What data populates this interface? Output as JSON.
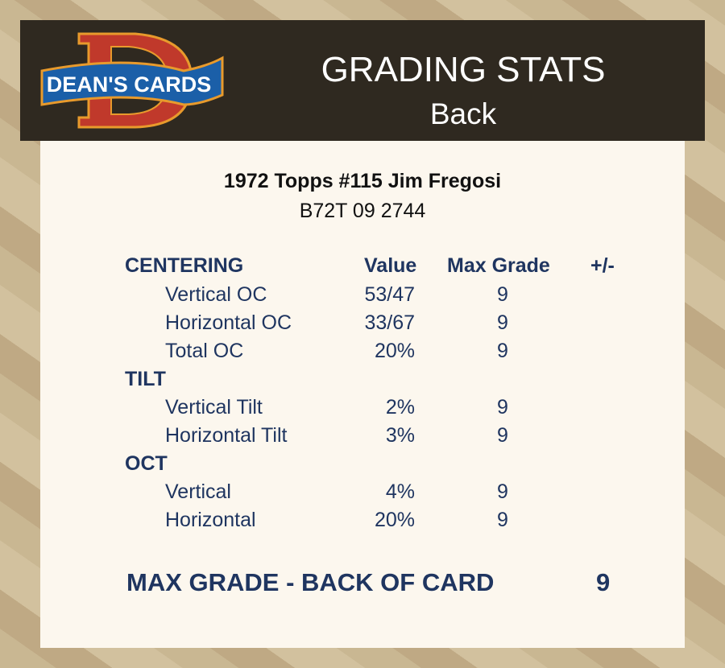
{
  "header": {
    "logo_text": "DEAN'S CARDS",
    "title": "GRADING STATS",
    "subtitle": "Back"
  },
  "card": {
    "name": "1972 Topps #115 Jim Fregosi",
    "cert": "B72T 09 2744"
  },
  "columns": {
    "value": "Value",
    "max_grade": "Max Grade",
    "plus_minus": "+/-"
  },
  "sections": [
    {
      "heading": "CENTERING",
      "rows": [
        {
          "label": "Vertical OC",
          "value": "53/47",
          "max_grade": "9"
        },
        {
          "label": "Horizontal OC",
          "value": "33/67",
          "max_grade": "9"
        },
        {
          "label": "Total OC",
          "value": "20%",
          "max_grade": "9"
        }
      ]
    },
    {
      "heading": "TILT",
      "rows": [
        {
          "label": "Vertical Tilt",
          "value": "2%",
          "max_grade": "9"
        },
        {
          "label": "Horizontal Tilt",
          "value": "3%",
          "max_grade": "9"
        }
      ]
    },
    {
      "heading": "OCT",
      "rows": [
        {
          "label": "Vertical",
          "value": "4%",
          "max_grade": "9"
        },
        {
          "label": "Horizontal",
          "value": "20%",
          "max_grade": "9"
        }
      ]
    }
  ],
  "summary": {
    "label": "MAX GRADE - BACK OF CARD",
    "value": "9"
  },
  "colors": {
    "text": "#1f3560",
    "header_bg": "#2f2920",
    "card_bg": "#fcf7ee"
  }
}
